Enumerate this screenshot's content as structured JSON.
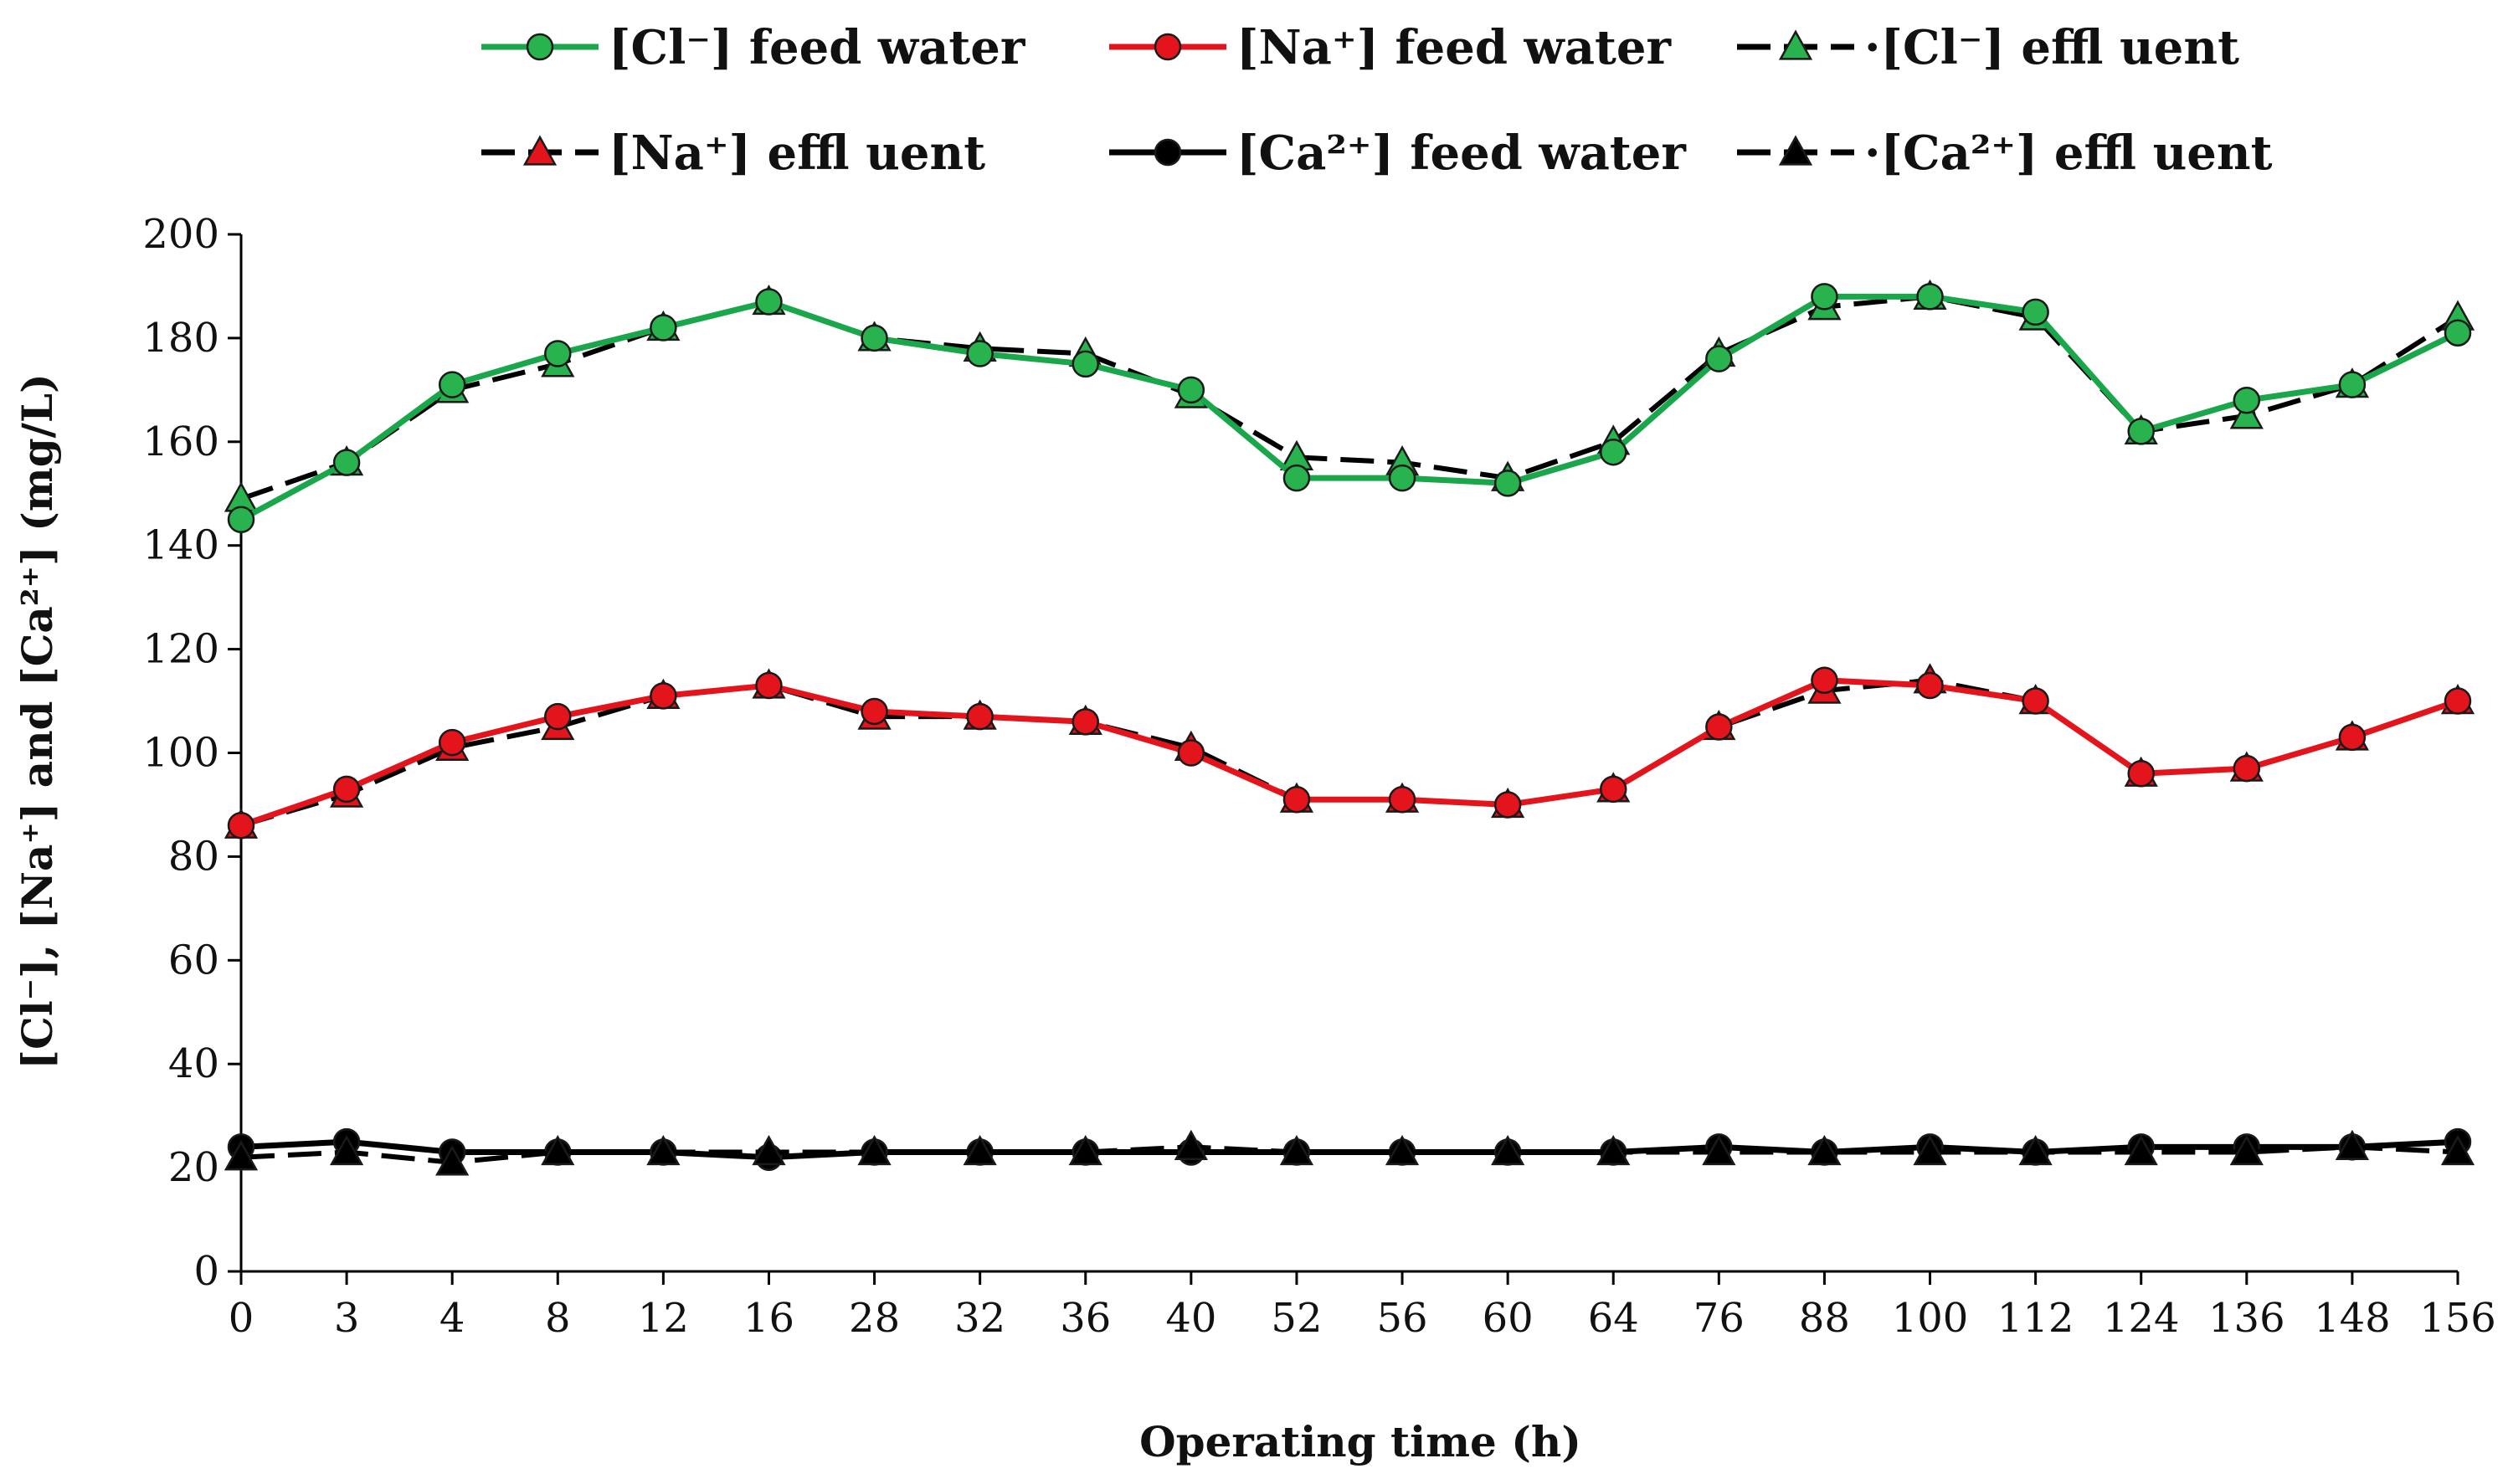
{
  "chart_data": {
    "type": "line",
    "title": "",
    "xlabel": "Operating time (h)",
    "ylabel": "[Cl⁻], [Na⁺] and [Ca²⁺] (mg/L)",
    "ylim": [
      0,
      200
    ],
    "yticks": [
      0,
      20,
      40,
      60,
      80,
      100,
      120,
      140,
      160,
      180,
      200
    ],
    "categories": [
      "0",
      "3",
      "4",
      "8",
      "12",
      "16",
      "28",
      "32",
      "36",
      "40",
      "52",
      "56",
      "60",
      "64",
      "76",
      "88",
      "100",
      "112",
      "124",
      "136",
      "148",
      "156"
    ],
    "grid": false,
    "legend_position": "top",
    "series": [
      {
        "name": "[Cl⁻] feed water",
        "legend_text": "[Cl⁻] feed water",
        "line_color": "#1aa64a",
        "marker_fill": "#29b34f",
        "marker": "circle",
        "dashed": false,
        "values": [
          145,
          156,
          171,
          177,
          182,
          187,
          180,
          177,
          175,
          170,
          153,
          153,
          152,
          158,
          176,
          188,
          188,
          185,
          162,
          168,
          171,
          181
        ]
      },
      {
        "name": "[Na⁺] feed water",
        "legend_text": "[Na⁺] feed water",
        "line_color": "#e3141b",
        "marker_fill": "#e3141b",
        "marker": "circle",
        "dashed": false,
        "values": [
          86,
          93,
          102,
          107,
          111,
          113,
          108,
          107,
          106,
          100,
          91,
          91,
          90,
          93,
          105,
          114,
          113,
          110,
          96,
          97,
          103,
          110
        ]
      },
      {
        "name": "[Cl⁻] effluent",
        "legend_text": "·[Cl⁻] effl uent",
        "line_color": "#000000",
        "marker_fill": "#29b34f",
        "marker": "triangle",
        "dashed": true,
        "values": [
          149,
          156,
          170,
          175,
          182,
          187,
          180,
          178,
          177,
          169,
          157,
          156,
          153,
          160,
          177,
          186,
          188,
          184,
          162,
          165,
          171,
          184
        ]
      },
      {
        "name": "[Na⁺] effluent",
        "legend_text": "[Na⁺] effl uent",
        "line_color": "#000000",
        "marker_fill": "#e3141b",
        "marker": "triangle",
        "dashed": true,
        "values": [
          86,
          92,
          101,
          105,
          111,
          113,
          107,
          107,
          106,
          101,
          91,
          91,
          90,
          93,
          105,
          112,
          114,
          110,
          96,
          97,
          103,
          110
        ]
      },
      {
        "name": "[Ca²⁺] feed water",
        "legend_text": "[Ca²⁺] feed water",
        "line_color": "#000000",
        "marker_fill": "#000000",
        "marker": "circle",
        "dashed": false,
        "values": [
          24,
          25,
          23,
          23,
          23,
          22,
          23,
          23,
          23,
          23,
          23,
          23,
          23,
          23,
          24,
          23,
          24,
          23,
          24,
          24,
          24,
          25
        ]
      },
      {
        "name": "[Ca²⁺] effluent",
        "legend_text": "·[Ca²⁺] effl uent",
        "line_color": "#000000",
        "marker_fill": "#000000",
        "marker": "triangle",
        "dashed": true,
        "values": [
          22,
          23,
          21,
          23,
          23,
          23,
          23,
          23,
          23,
          24,
          23,
          23,
          23,
          23,
          23,
          23,
          23,
          23,
          23,
          23,
          24,
          23
        ]
      }
    ]
  }
}
